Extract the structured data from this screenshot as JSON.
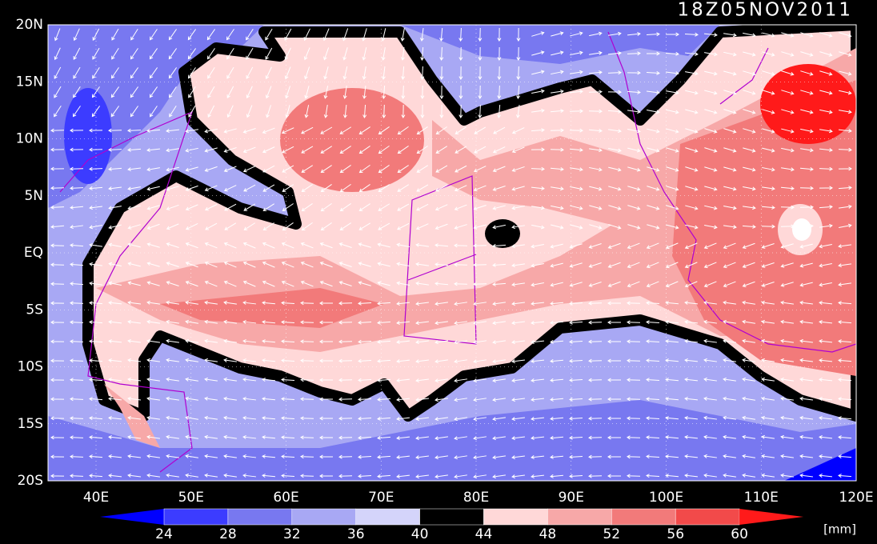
{
  "title": "18Z05NOV2011",
  "lat_labels": [
    "20N",
    "15N",
    "10N",
    "5N",
    "EQ",
    "5S",
    "10S",
    "15S",
    "20S"
  ],
  "lon_labels": [
    "40E",
    "50E",
    "60E",
    "70E",
    "80E",
    "90E",
    "100E",
    "110E",
    "120E"
  ],
  "colorbar": {
    "ticks": [
      24,
      28,
      32,
      36,
      40,
      44,
      48,
      52,
      56,
      60
    ],
    "colors": [
      "#0000ff",
      "#3c3cff",
      "#7878f0",
      "#a8a8f4",
      "#d4d4fa",
      "#000000",
      "#ffd8d8",
      "#f7a8a8",
      "#f27a7a",
      "#f24a4a",
      "#ff1a1a"
    ],
    "unit": "[mm]"
  }
}
